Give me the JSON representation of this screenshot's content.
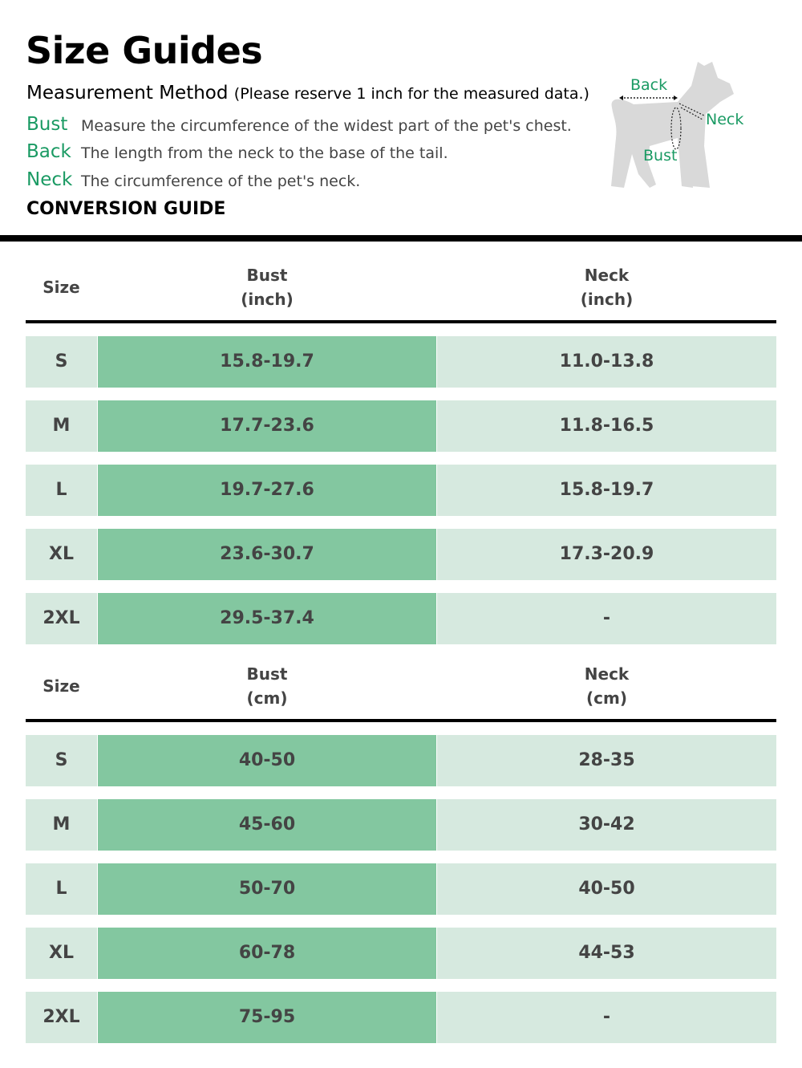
{
  "title": "Size Guides",
  "method": {
    "label": "Measurement Method",
    "note": "(Please reserve 1 inch for the measured data.)"
  },
  "definitions": [
    {
      "term": "Bust",
      "desc": "Measure the circumference of the widest part of the pet's chest."
    },
    {
      "term": "Back",
      "desc": "The length from the neck to the base of the tail."
    },
    {
      "term": "Neck",
      "desc": "The circumference of the pet's neck."
    }
  ],
  "conversion_label": "CONVERSION GUIDE",
  "diagram": {
    "back": "Back",
    "neck": "Neck",
    "bust": "Bust"
  },
  "colors": {
    "accent": "#1a9a63",
    "cell_dark": "#83c7a0",
    "cell_light": "#d6e9df"
  },
  "tables": [
    {
      "headers": [
        "Size",
        "Bust\n(inch)",
        "Neck\n(inch)"
      ],
      "rows": [
        [
          "S",
          "15.8-19.7",
          "11.0-13.8"
        ],
        [
          "M",
          "17.7-23.6",
          "11.8-16.5"
        ],
        [
          "L",
          "19.7-27.6",
          "15.8-19.7"
        ],
        [
          "XL",
          "23.6-30.7",
          "17.3-20.9"
        ],
        [
          "2XL",
          "29.5-37.4",
          "-"
        ]
      ]
    },
    {
      "headers": [
        "Size",
        "Bust\n(cm)",
        "Neck\n(cm)"
      ],
      "rows": [
        [
          "S",
          "40-50",
          "28-35"
        ],
        [
          "M",
          "45-60",
          "30-42"
        ],
        [
          "L",
          "50-70",
          "40-50"
        ],
        [
          "XL",
          "60-78",
          "44-53"
        ],
        [
          "2XL",
          "75-95",
          "-"
        ]
      ]
    }
  ]
}
